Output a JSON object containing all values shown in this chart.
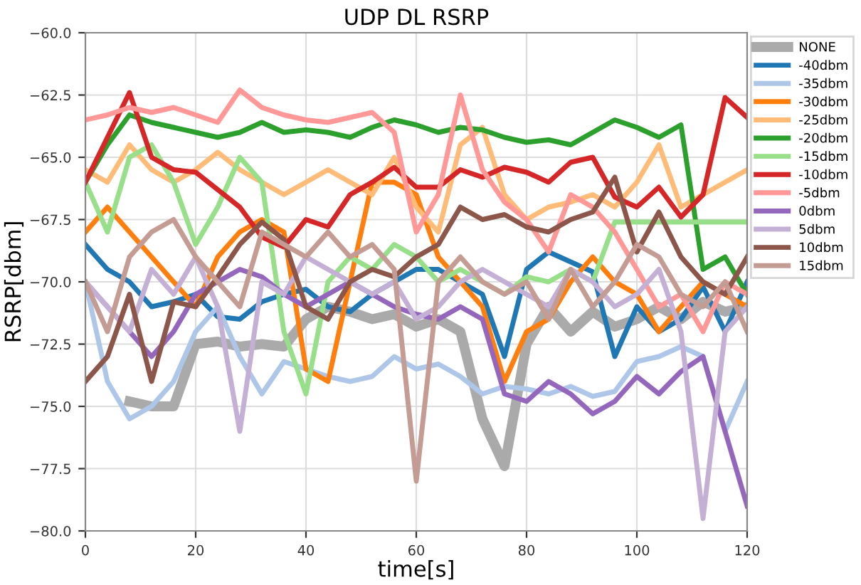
{
  "chart_data": {
    "type": "line",
    "title": "UDP DL RSRP",
    "xlabel": "time[s]",
    "ylabel": "RSRP[dbm]",
    "x": [
      0,
      4,
      8,
      12,
      16,
      20,
      24,
      28,
      32,
      36,
      40,
      44,
      48,
      52,
      56,
      60,
      64,
      68,
      72,
      76,
      80,
      84,
      88,
      92,
      96,
      100,
      104,
      108,
      112,
      116,
      120
    ],
    "xlim": [
      0,
      120
    ],
    "xticks": [
      0,
      20,
      40,
      60,
      80,
      100,
      120
    ],
    "ylim": [
      -80,
      -60
    ],
    "yticks": [
      {
        "value": -80,
        "label": "−80.0"
      },
      {
        "value": -77.5,
        "label": "−77.5"
      },
      {
        "value": -75,
        "label": "−75.0"
      },
      {
        "value": -72.5,
        "label": "−72.5"
      },
      {
        "value": -70,
        "label": "−70.0"
      },
      {
        "value": -67.5,
        "label": "−67.5"
      },
      {
        "value": -65,
        "label": "−65.0"
      },
      {
        "value": -62.5,
        "label": "−62.5"
      },
      {
        "value": -60,
        "label": "−60.0"
      }
    ],
    "grid": true,
    "legend": "top right",
    "line_style": "solid",
    "marker": "none",
    "series": [
      {
        "name": "NONE",
        "color": "#aaaaaa",
        "values": [
          null,
          null,
          -74.8,
          -75,
          -75,
          -72.5,
          -72.4,
          -72.6,
          -72.5,
          -72.6,
          -71.5,
          -71,
          -71.2,
          -71.5,
          -71.3,
          -71.8,
          -71.5,
          -72,
          -75.5,
          -77.4,
          -72.5,
          -71,
          -72,
          -71.2,
          -71.8,
          -71.5,
          -71,
          -71.5,
          -70.8,
          -71.2,
          -71
        ]
      },
      {
        "name": "-40dbm",
        "color": "#1f77b4",
        "values": [
          -68.5,
          -69.5,
          -70,
          -71,
          -70.8,
          -70.5,
          -71.4,
          -71.5,
          -70.8,
          -70.5,
          -70.3,
          -71,
          -71.2,
          -70.5,
          -70,
          -69.5,
          -69.5,
          -70,
          -70.5,
          -73,
          -69.5,
          -68.8,
          -69.2,
          -69.6,
          -73,
          -71,
          -72,
          -71.5,
          -70.2,
          -72,
          -70
        ]
      },
      {
        "name": "-35dbm",
        "color": "#aec7e8",
        "values": [
          -70,
          -74,
          -75.5,
          -75,
          -74,
          -72,
          -71,
          -73,
          -74.5,
          -73.2,
          -73.5,
          -73.8,
          -74,
          -73.8,
          -73,
          -73.5,
          -73.3,
          -73.8,
          -74.5,
          -74.2,
          -74.3,
          -74.5,
          -74.2,
          -74.6,
          -74.4,
          -73.2,
          -73,
          -72.6,
          -73,
          -76,
          -74
        ]
      },
      {
        "name": "-30dbm",
        "color": "#ff7f0e",
        "values": [
          -68,
          -67,
          -68,
          -69,
          -70,
          -71,
          -69,
          -68,
          -67.5,
          -68,
          -73.5,
          -74,
          -70,
          -66,
          -66,
          -66.5,
          -69,
          -70,
          -71,
          -74,
          -72,
          -71.5,
          -70,
          -69,
          -70,
          -70.5,
          -72,
          -71,
          -70,
          -70.5,
          -71
        ]
      },
      {
        "name": "-25dbm",
        "color": "#ffbb78",
        "values": [
          -65.5,
          -66,
          -64.5,
          -65.5,
          -66,
          -65.5,
          -64.8,
          -65.5,
          -66,
          -66.5,
          -66,
          -65.5,
          -66,
          -66.5,
          -65,
          -67,
          -68,
          -64.5,
          -63.8,
          -66.5,
          -67.5,
          -67,
          -66.8,
          -66.5,
          -67,
          -66,
          -64.5,
          -67,
          -66.5,
          -66,
          -65.5
        ]
      },
      {
        "name": "-20dbm",
        "color": "#2ca02c",
        "values": [
          -66,
          -64.5,
          -63.3,
          -63.6,
          -63.8,
          -64.0,
          -64.2,
          -64.0,
          -63.6,
          -64.0,
          -63.9,
          -64.0,
          -64.2,
          -63.8,
          -63.5,
          -63.7,
          -64.0,
          -63.8,
          -63.9,
          -64.2,
          -64.4,
          -64.3,
          -64.5,
          -64.0,
          -63.5,
          -63.8,
          -64.2,
          -63.7,
          -69.5,
          -69,
          -70.5
        ]
      },
      {
        "name": "-15dbm",
        "color": "#98df8a",
        "values": [
          -66,
          -68,
          -65,
          -64.5,
          -66,
          -68.5,
          -67,
          -65,
          -66,
          -72,
          -74.5,
          -70,
          -69,
          -69.5,
          -68.5,
          -69,
          -70,
          -69.5,
          -70,
          -70.5,
          -69.8,
          -70,
          -69.5,
          -70,
          -67.6,
          -67.6,
          -67.6,
          -67.6,
          -67.6,
          -67.6,
          -67.6
        ]
      },
      {
        "name": "-10dbm",
        "color": "#d62728",
        "values": [
          -66,
          -64.2,
          -62.4,
          -65,
          -65.5,
          -65.6,
          -66.3,
          -67,
          -68.2,
          -68.6,
          -67.5,
          -67.8,
          -66.5,
          -66,
          -65.4,
          -66.2,
          -66.2,
          -65.5,
          -65.8,
          -65.4,
          -65.6,
          -66,
          -65.2,
          -65,
          -66.6,
          -67,
          -66.2,
          -67.4,
          -66.5,
          -62.6,
          -63.4
        ]
      },
      {
        "name": "-5dbm",
        "color": "#ff9896",
        "values": [
          -63.5,
          -63.3,
          -63,
          -63.2,
          -63.0,
          -63.3,
          -63.6,
          -62.3,
          -63,
          -63.3,
          -63.5,
          -63.6,
          -63.4,
          -63.2,
          -64,
          -68,
          -66.5,
          -62.5,
          -65.5,
          -66.8,
          -67.5,
          -68.8,
          -66.5,
          -67,
          -68,
          -69.5,
          -71,
          -70.5,
          -72,
          -70,
          -70.5
        ]
      },
      {
        "name": "0dbm",
        "color": "#9467bd",
        "values": [
          -70,
          -71,
          -72,
          -73,
          -72,
          -70.5,
          -70,
          -69.5,
          -69.8,
          -70.5,
          -71,
          -70.5,
          -70,
          -70.5,
          -71,
          -71.3,
          -71.5,
          -71,
          -71.5,
          -74.5,
          -74.8,
          -74,
          -74.5,
          -75.3,
          -74.8,
          -73.8,
          -74.5,
          -73.6,
          -73,
          -76,
          -79
        ]
      },
      {
        "name": "5dbm",
        "color": "#c5b0d5",
        "values": [
          -70,
          -71,
          -72,
          -69.5,
          -70.5,
          -69,
          -71,
          -76,
          -70,
          -70.5,
          -69,
          -69.5,
          -70,
          -70.5,
          -70,
          -71.5,
          -71,
          -70,
          -69.5,
          -70,
          -70.5,
          -71,
          -69.5,
          -70,
          -71,
          -70.5,
          -69.5,
          -72,
          -79.5,
          -72,
          -71
        ]
      },
      {
        "name": "10dbm",
        "color": "#8c564b",
        "values": [
          -74,
          -73,
          -70.5,
          -74,
          -70.8,
          -71,
          -69.8,
          -68.5,
          -67.6,
          -68.3,
          -71,
          -71.5,
          -70,
          -69.5,
          -69.8,
          -69,
          -68.5,
          -67,
          -67.5,
          -67.3,
          -67.8,
          -68,
          -67.5,
          -67.2,
          -65.8,
          -68.8,
          -67.2,
          -69,
          -70,
          -70.5,
          -69
        ]
      },
      {
        "name": "15dbm",
        "color": "#c49c94",
        "values": [
          -70,
          -72,
          -69,
          -68,
          -67.5,
          -69,
          -70,
          -71,
          -68,
          -68.5,
          -69,
          -68,
          -69,
          -68.5,
          -69.5,
          -78,
          -70,
          -69,
          -70,
          -70.5,
          -70,
          -71.5,
          -69.5,
          -71,
          -70,
          -68.5,
          -69,
          -70.5,
          -71,
          -70,
          -72
        ]
      }
    ]
  }
}
